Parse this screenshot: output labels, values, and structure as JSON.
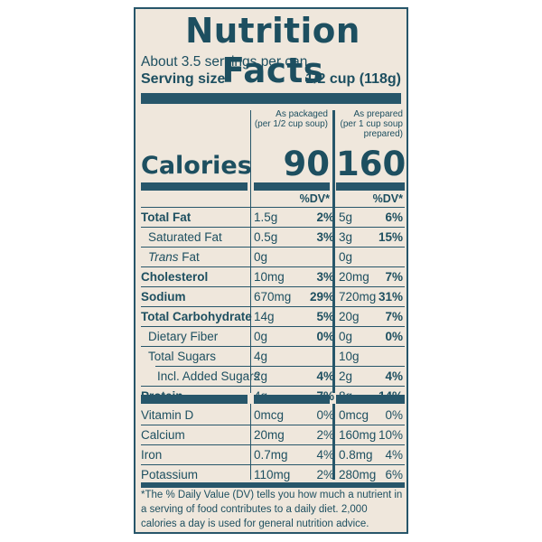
{
  "label": {
    "title": "Nutrition Facts",
    "servings_per_container": "About 3.5 servings per can",
    "serving_size_label": "Serving size",
    "serving_size_value": "1/2 cup (118g)",
    "col1_header_line1": "As packaged",
    "col1_header_line2": "(per 1/2 cup soup)",
    "col2_header_line1": "As prepared",
    "col2_header_line2": "(per 1 cup soup",
    "col2_header_line3": "prepared)",
    "calories_label": "Calories",
    "calories_packaged": "90",
    "calories_prepared": "160",
    "dv_header": "%DV*",
    "nutrients": [
      {
        "name": "Total Fat",
        "amt1": "1.5g",
        "dv1": "2%",
        "amt2": "5g",
        "dv2": "6%"
      },
      {
        "name": "Saturated Fat",
        "amt1": "0.5g",
        "dv1": "3%",
        "amt2": "3g",
        "dv2": "15%"
      },
      {
        "name_italic": "Trans",
        "name_rest": " Fat",
        "amt1": "0g",
        "dv1": "",
        "amt2": "0g",
        "dv2": ""
      },
      {
        "name": "Cholesterol",
        "amt1": "10mg",
        "dv1": "3%",
        "amt2": "20mg",
        "dv2": "7%"
      },
      {
        "name": "Sodium",
        "amt1": "670mg",
        "dv1": "29%",
        "amt2": "720mg",
        "dv2": "31%"
      },
      {
        "name": "Total Carbohydrate",
        "amt1": "14g",
        "dv1": "5%",
        "amt2": "20g",
        "dv2": "7%"
      },
      {
        "name": "Dietary Fiber",
        "amt1": "0g",
        "dv1": "0%",
        "amt2": "0g",
        "dv2": "0%"
      },
      {
        "name": "Total Sugars",
        "amt1": "4g",
        "dv1": "",
        "amt2": "10g",
        "dv2": ""
      },
      {
        "name": "Incl. Added Sugars",
        "amt1": "2g",
        "dv1": "4%",
        "amt2": "2g",
        "dv2": "4%"
      },
      {
        "name": "Protein",
        "amt1": "4g",
        "dv1": "7%",
        "amt2": "8g",
        "dv2": "14%"
      }
    ],
    "vitamins": [
      {
        "name": "Vitamin D",
        "amt1": "0mcg",
        "dv1": "0%",
        "amt2": "0mcg",
        "dv2": "0%"
      },
      {
        "name": "Calcium",
        "amt1": "20mg",
        "dv1": "2%",
        "amt2": "160mg",
        "dv2": "10%"
      },
      {
        "name": "Iron",
        "amt1": "0.7mg",
        "dv1": "4%",
        "amt2": "0.8mg",
        "dv2": "4%"
      },
      {
        "name": "Potassium",
        "amt1": "110mg",
        "dv1": "2%",
        "amt2": "280mg",
        "dv2": "6%"
      }
    ],
    "footnote": "*The % Daily Value (DV) tells you how much a nutrient in a serving of food contributes to a daily diet. 2,000 calories a day is used for general nutrition advice."
  },
  "colors": {
    "ink": "#1d4f60",
    "rule": "#27566a",
    "paper": "#efe7dc"
  }
}
